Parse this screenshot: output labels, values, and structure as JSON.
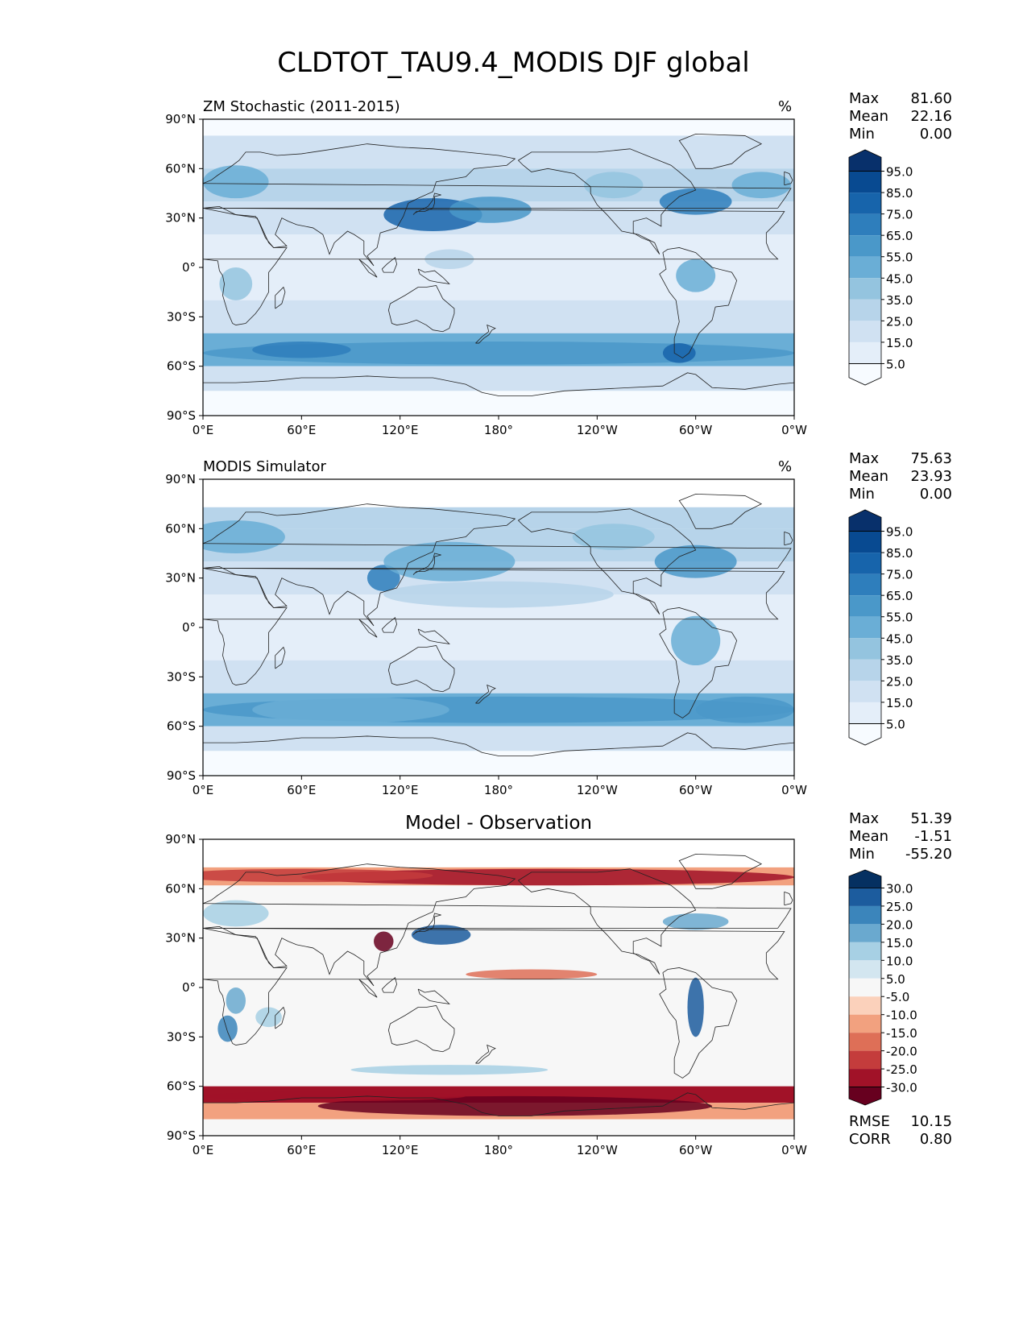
{
  "figure_title": "CLDTOT_TAU9.4_MODIS DJF global",
  "xticks": [
    "0°E",
    "60°E",
    "120°E",
    "180°",
    "120°W",
    "60°W",
    "0°W"
  ],
  "yticks": [
    "90°N",
    "60°N",
    "30°N",
    "0°",
    "30°S",
    "60°S",
    "90°S"
  ],
  "panels": [
    {
      "title": "ZM Stochastic (2011-2015)",
      "unit": "%",
      "stats": [
        {
          "k": "Max",
          "v": "81.60"
        },
        {
          "k": "Mean",
          "v": "22.16"
        },
        {
          "k": "Min",
          "v": "0.00"
        }
      ],
      "colorbar_labels": [
        "95.0",
        "85.0",
        "75.0",
        "65.0",
        "55.0",
        "45.0",
        "35.0",
        "25.0",
        "15.0",
        "5.0"
      ],
      "palette": "blues"
    },
    {
      "title": "MODIS Simulator",
      "unit": "%",
      "stats": [
        {
          "k": "Max",
          "v": "75.63"
        },
        {
          "k": "Mean",
          "v": "23.93"
        },
        {
          "k": "Min",
          "v": "0.00"
        }
      ],
      "colorbar_labels": [
        "95.0",
        "85.0",
        "75.0",
        "65.0",
        "55.0",
        "45.0",
        "35.0",
        "25.0",
        "15.0",
        "5.0"
      ],
      "palette": "blues"
    },
    {
      "title": "Model - Observation",
      "unit": "",
      "stats": [
        {
          "k": "Max",
          "v": "51.39"
        },
        {
          "k": "Mean",
          "v": "-1.51"
        },
        {
          "k": "Min",
          "v": "-55.20"
        }
      ],
      "colorbar_labels": [
        "30.0",
        "25.0",
        "20.0",
        "15.0",
        "10.0",
        "5.0",
        "-5.0",
        "-10.0",
        "-15.0",
        "-20.0",
        "-25.0",
        "-30.0"
      ],
      "palette": "rdbu",
      "footer": [
        {
          "k": "RMSE",
          "v": "10.15"
        },
        {
          "k": "CORR",
          "v": "0.80"
        }
      ]
    }
  ],
  "colors": {
    "blues": [
      "#f7fbff",
      "#e4eef9",
      "#d0e1f2",
      "#b7d4ea",
      "#94c4df",
      "#6aaed6",
      "#4a98c9",
      "#2e7ebc",
      "#1764ab",
      "#084a91",
      "#08306b"
    ],
    "rdbu": [
      "#67001f",
      "#a11228",
      "#c43c3c",
      "#de6f57",
      "#f2a17f",
      "#fbd1bb",
      "#f7f7f7",
      "#d3e6f0",
      "#a7d0e4",
      "#6aa9cf",
      "#3b85bb",
      "#1c5c9e",
      "#053061"
    ]
  },
  "chart_data": [
    {
      "type": "heatmap",
      "title": "ZM Stochastic (2011-2015)",
      "xlim": [
        "0°E",
        "0°W"
      ],
      "ylim": [
        "90°S",
        "90°N"
      ],
      "levels": [
        5,
        15,
        25,
        35,
        45,
        55,
        65,
        75,
        85,
        95
      ],
      "max": 81.6,
      "mean": 22.16,
      "min": 0.0
    },
    {
      "type": "heatmap",
      "title": "MODIS Simulator",
      "xlim": [
        "0°E",
        "0°W"
      ],
      "ylim": [
        "90°S",
        "90°N"
      ],
      "levels": [
        5,
        15,
        25,
        35,
        45,
        55,
        65,
        75,
        85,
        95
      ],
      "max": 75.63,
      "mean": 23.93,
      "min": 0.0
    },
    {
      "type": "heatmap",
      "title": "Model - Observation",
      "xlim": [
        "0°E",
        "0°W"
      ],
      "ylim": [
        "90°S",
        "90°N"
      ],
      "levels": [
        -30,
        -25,
        -20,
        -15,
        -10,
        -5,
        5,
        10,
        15,
        20,
        25,
        30
      ],
      "max": 51.39,
      "mean": -1.51,
      "min": -55.2,
      "rmse": 10.15,
      "corr": 0.8
    }
  ]
}
